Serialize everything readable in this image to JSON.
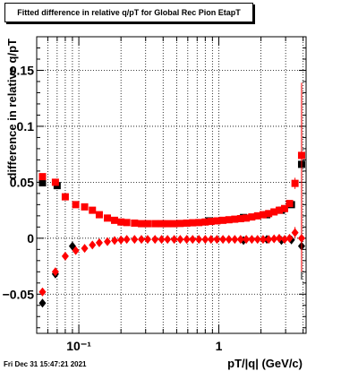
{
  "title": "Fitted difference in relative q/pT for Global Rec Pion EtapT",
  "timestamp": "Fri Dec 31 15:47:21 2021",
  "chart_data": {
    "type": "scatter",
    "title": "Fitted difference in relative q/pT for Global Rec Pion EtapT",
    "xlabel": "pT/|q| (GeV/c)",
    "ylabel": "difference in relative q/pT",
    "x_scale": "log",
    "xlim": [
      0.05,
      4.2
    ],
    "ylim": [
      -0.085,
      0.18
    ],
    "x_tick_labels": [
      "10⁻¹",
      "1"
    ],
    "y_tick_labels": [
      "−0.05",
      "0",
      "0.05",
      "0.1",
      "0.15"
    ],
    "grid": true,
    "series": [
      {
        "name": "",
        "color": "#000000",
        "marker": "square",
        "x": [
          0.055,
          0.07,
          0.85,
          1.5,
          2.2,
          2.8,
          3.3,
          3.9
        ],
        "values": [
          0.0495,
          0.047,
          0.0155,
          0.0185,
          0.021,
          0.025,
          0.03,
          0.066
        ],
        "yerr": [
          0.0006,
          0.0006,
          0.0005,
          0.0005,
          0.0006,
          0.0008,
          0.001,
          0.07
        ]
      },
      {
        "name": "",
        "color": "#000000",
        "marker": "diamond",
        "x": [
          0.055,
          0.068,
          0.09,
          1.5,
          2.2,
          2.8,
          3.3,
          3.9
        ],
        "values": [
          -0.058,
          -0.032,
          -0.007,
          -0.002,
          -0.001,
          -0.002,
          -0.0015,
          -0.007
        ],
        "yerr": [
          0.0006,
          0.0006,
          0.0005,
          0.0005,
          0.0006,
          0.0008,
          0.001,
          0.03
        ]
      },
      {
        "name": "",
        "color": "#ff0000",
        "marker": "square",
        "x": [
          0.055,
          0.068,
          0.08,
          0.095,
          0.11,
          0.125,
          0.14,
          0.16,
          0.18,
          0.2,
          0.22,
          0.25,
          0.28,
          0.31,
          0.35,
          0.39,
          0.43,
          0.48,
          0.53,
          0.59,
          0.65,
          0.72,
          0.8,
          0.88,
          0.97,
          1.07,
          1.18,
          1.3,
          1.43,
          1.57,
          1.72,
          1.89,
          2.07,
          2.27,
          2.48,
          2.7,
          2.95,
          3.2,
          3.5,
          3.9
        ],
        "values": [
          0.055,
          0.05,
          0.037,
          0.03,
          0.028,
          0.025,
          0.021,
          0.018,
          0.016,
          0.0145,
          0.014,
          0.0135,
          0.013,
          0.013,
          0.013,
          0.013,
          0.013,
          0.013,
          0.0132,
          0.0135,
          0.0138,
          0.014,
          0.0145,
          0.015,
          0.0155,
          0.016,
          0.0165,
          0.017,
          0.0175,
          0.018,
          0.019,
          0.02,
          0.021,
          0.022,
          0.0235,
          0.025,
          0.0265,
          0.031,
          0.049,
          0.074
        ],
        "yerr": [
          0.0006,
          0.0006,
          0.0005,
          0.0005,
          0.0005,
          0.0005,
          0.0004,
          0.0004,
          0.0004,
          0.0004,
          0.0004,
          0.0004,
          0.0004,
          0.0004,
          0.0004,
          0.0004,
          0.0004,
          0.0004,
          0.0004,
          0.0004,
          0.0004,
          0.0004,
          0.0004,
          0.0004,
          0.0004,
          0.0005,
          0.0005,
          0.0005,
          0.0005,
          0.0005,
          0.0005,
          0.0006,
          0.0006,
          0.0007,
          0.0008,
          0.0009,
          0.001,
          0.002,
          0.005,
          0.065
        ]
      },
      {
        "name": "",
        "color": "#ff0000",
        "marker": "diamond",
        "x": [
          0.055,
          0.068,
          0.08,
          0.095,
          0.11,
          0.125,
          0.14,
          0.16,
          0.18,
          0.2,
          0.22,
          0.25,
          0.28,
          0.31,
          0.35,
          0.39,
          0.43,
          0.48,
          0.53,
          0.59,
          0.65,
          0.72,
          0.8,
          0.88,
          0.97,
          1.07,
          1.18,
          1.3,
          1.43,
          1.57,
          1.72,
          1.89,
          2.07,
          2.27,
          2.48,
          2.7,
          2.95,
          3.2,
          3.5,
          3.9
        ],
        "values": [
          -0.048,
          -0.03,
          -0.016,
          -0.011,
          -0.009,
          -0.006,
          -0.004,
          -0.003,
          -0.002,
          -0.0015,
          -0.001,
          -0.001,
          -0.001,
          -0.001,
          -0.001,
          -0.001,
          -0.001,
          -0.001,
          -0.001,
          -0.001,
          -0.001,
          -0.001,
          -0.001,
          -0.001,
          -0.001,
          -0.001,
          -0.001,
          -0.001,
          -0.001,
          -0.001,
          -0.001,
          -0.001,
          -0.001,
          -0.001,
          -0.0005,
          0,
          -0.001,
          0.0,
          0.005,
          0.0
        ],
        "yerr": [
          0.0006,
          0.0006,
          0.0005,
          0.0005,
          0.0005,
          0.0005,
          0.0004,
          0.0004,
          0.0004,
          0.0004,
          0.0004,
          0.0004,
          0.0004,
          0.0004,
          0.0004,
          0.0004,
          0.0004,
          0.0004,
          0.0004,
          0.0004,
          0.0004,
          0.0004,
          0.0004,
          0.0004,
          0.0004,
          0.0005,
          0.0005,
          0.0005,
          0.0005,
          0.0005,
          0.0005,
          0.0006,
          0.0006,
          0.0007,
          0.0008,
          0.0009,
          0.001,
          0.002,
          0.005,
          0.03
        ]
      }
    ]
  }
}
